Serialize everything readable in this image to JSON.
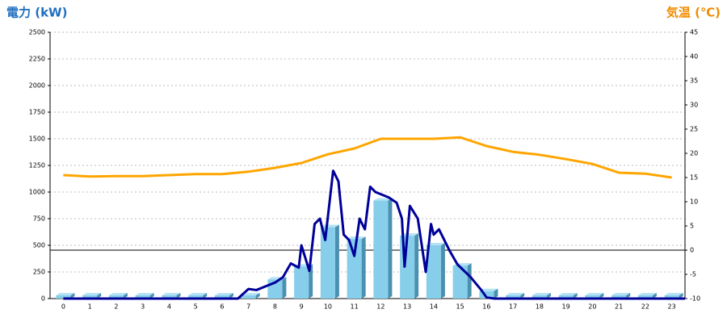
{
  "chart_data": {
    "type": "bar",
    "y_label": "電力 (kW)",
    "y2_label": "気温 (℃)",
    "categories": [
      "0",
      "1",
      "2",
      "3",
      "4",
      "5",
      "6",
      "7",
      "8",
      "9",
      "10",
      "11",
      "12",
      "13",
      "14",
      "15",
      "16",
      "17",
      "18",
      "19",
      "20",
      "21",
      "22",
      "23"
    ],
    "ylim": [
      0,
      2500
    ],
    "yticks": [
      0,
      250,
      500,
      750,
      1000,
      1250,
      1500,
      1750,
      2000,
      2250,
      2500
    ],
    "y2lim": [
      -10,
      45
    ],
    "y2ticks": [
      -10,
      -5,
      0,
      5,
      10,
      15,
      20,
      25,
      30,
      35,
      40,
      45
    ],
    "grid": true,
    "series": [
      {
        "type": "bar",
        "color": "#87ceeb",
        "values": [
          30,
          30,
          30,
          30,
          30,
          30,
          30,
          30,
          180,
          300,
          670,
          560,
          920,
          590,
          500,
          310,
          70,
          30,
          30,
          30,
          30,
          30,
          30,
          30
        ]
      },
      {
        "type": "line",
        "color": "#000099",
        "x": [
          0,
          6.6,
          7.0,
          7.3,
          7.7,
          8.0,
          8.3,
          8.6,
          8.9,
          9.0,
          9.3,
          9.5,
          9.7,
          9.9,
          10.2,
          10.4,
          10.6,
          10.8,
          11.0,
          11.2,
          11.4,
          11.6,
          11.8,
          12.3,
          12.6,
          12.8,
          12.9,
          13.1,
          13.4,
          13.7,
          13.9,
          14.0,
          14.2,
          14.6,
          14.9,
          15.4,
          15.8,
          16.0,
          16.3,
          23.5
        ],
        "values": [
          0,
          0,
          90,
          80,
          120,
          150,
          200,
          330,
          290,
          500,
          260,
          700,
          750,
          550,
          1200,
          1100,
          600,
          550,
          400,
          750,
          650,
          1050,
          1000,
          950,
          900,
          750,
          300,
          870,
          750,
          250,
          700,
          600,
          650,
          450,
          320,
          200,
          80,
          10,
          0,
          0
        ]
      },
      {
        "type": "line",
        "axis": "y2",
        "color": "#ffa500",
        "values": [
          15.5,
          15.2,
          15.3,
          15.3,
          15.5,
          15.7,
          15.7,
          16.2,
          17,
          18,
          19.8,
          21,
          23,
          23,
          23,
          23.3,
          21.5,
          20.3,
          19.7,
          18.8,
          17.8,
          16,
          15.8,
          15
        ]
      }
    ]
  }
}
